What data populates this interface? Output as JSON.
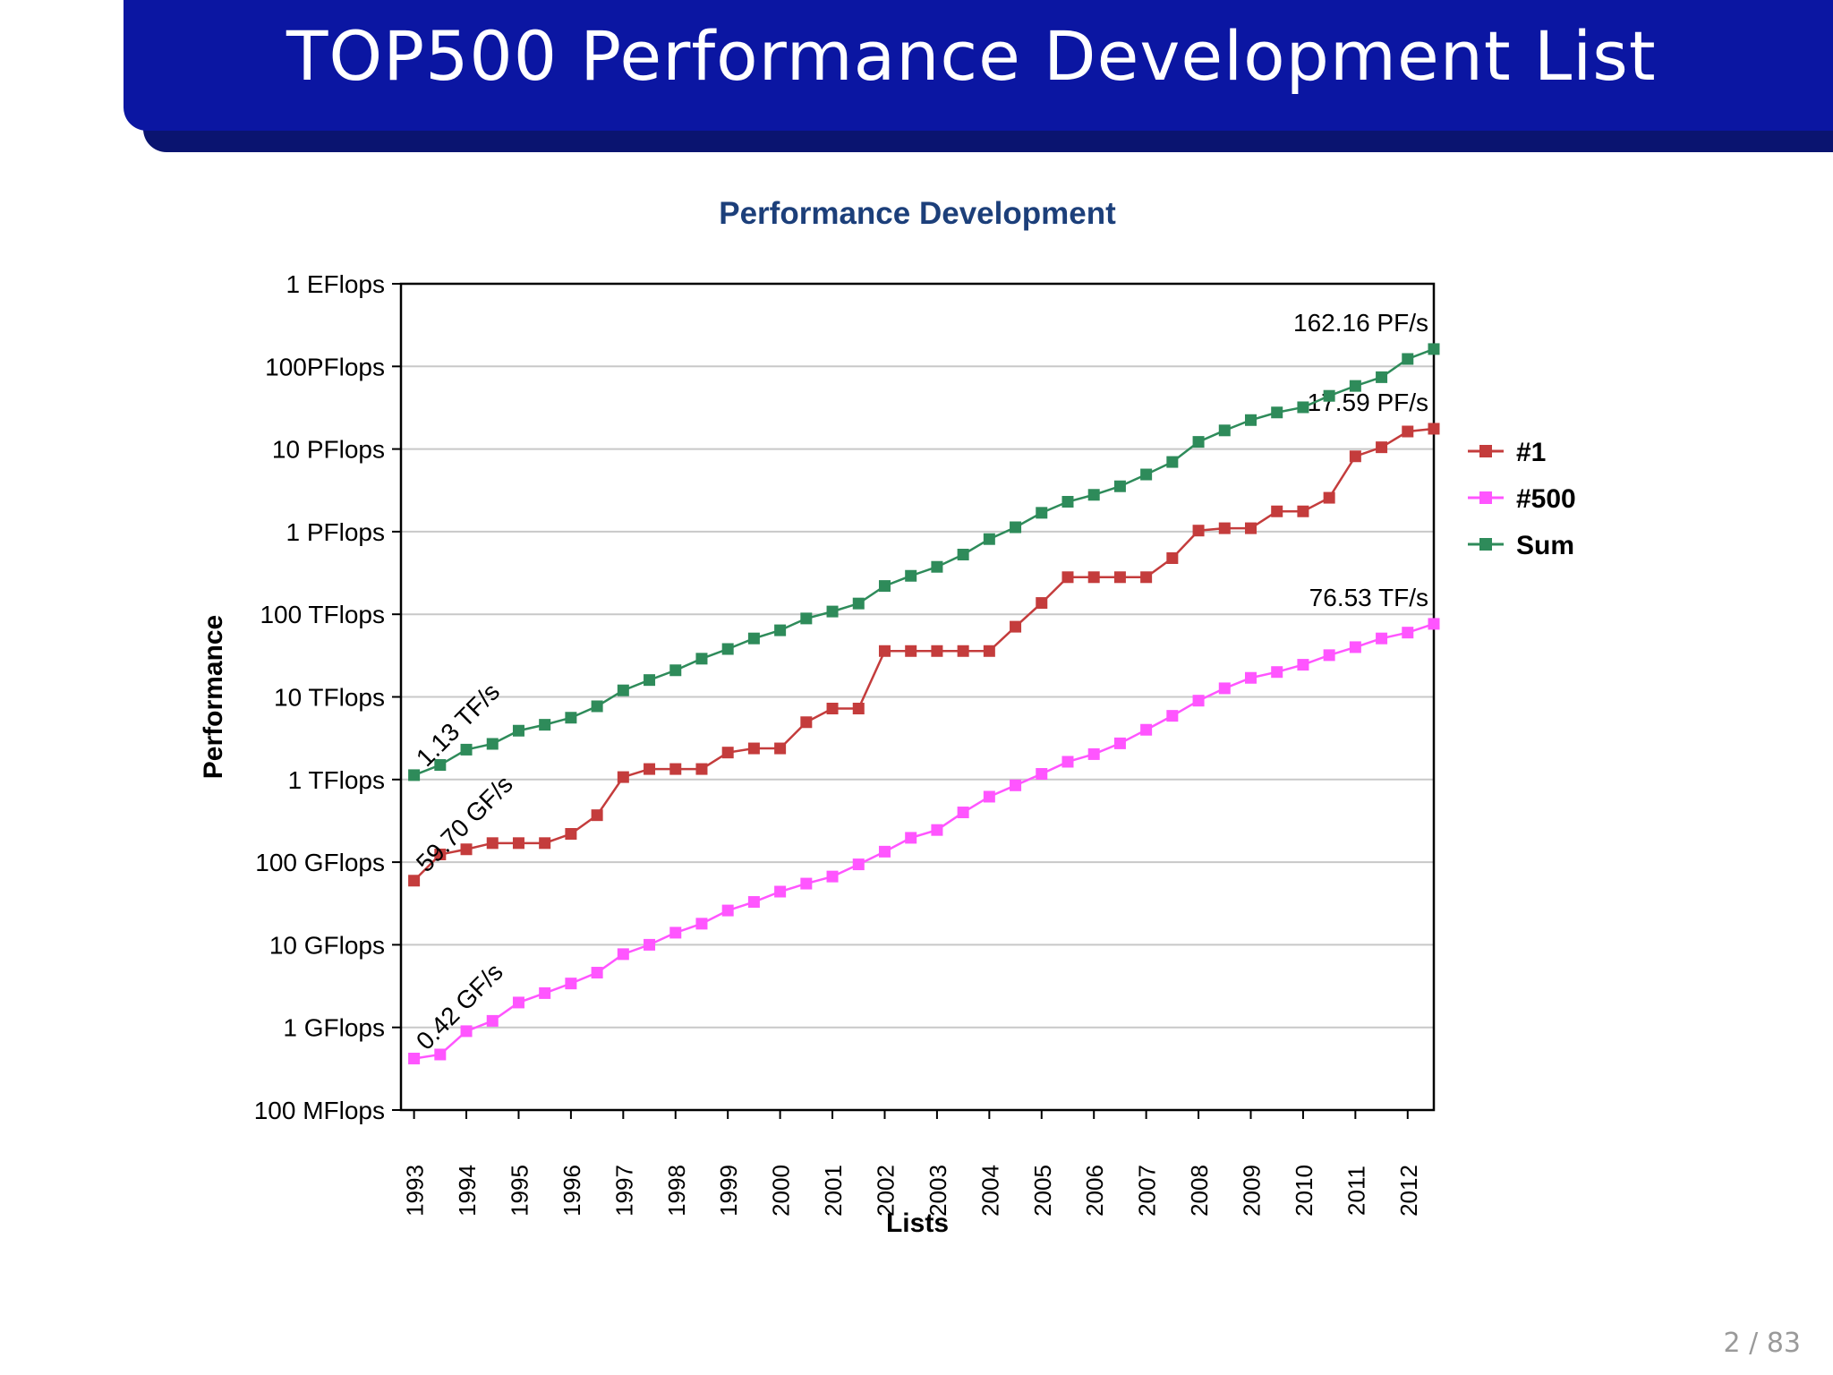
{
  "slide": {
    "title": "TOP500 Performance Development List",
    "page_number": "2 / 83"
  },
  "colors": {
    "title_bar": "#0b16a2",
    "title_shadow": "#0a1470",
    "n1": "#c43c3c",
    "n500": "#ff55ff",
    "sum": "#2e8b5a"
  },
  "chart_data": {
    "type": "line",
    "title": "Performance Development",
    "xlabel": "Lists",
    "ylabel": "Performance",
    "yscale": "log",
    "y_unit": "Flops",
    "ylim": [
      100000000.0,
      1e+18
    ],
    "yticks": [
      {
        "value": 1e+18,
        "label": "1 EFlops"
      },
      {
        "value": 1e+17,
        "label": "100PFlops"
      },
      {
        "value": 1e+16,
        "label": "10 PFlops"
      },
      {
        "value": 1000000000000000.0,
        "label": "1 PFlops"
      },
      {
        "value": 100000000000000.0,
        "label": "100 TFlops"
      },
      {
        "value": 10000000000000.0,
        "label": "10 TFlops"
      },
      {
        "value": 1000000000000.0,
        "label": "1 TFlops"
      },
      {
        "value": 100000000000.0,
        "label": "100 GFlops"
      },
      {
        "value": 10000000000.0,
        "label": "10 GFlops"
      },
      {
        "value": 1000000000.0,
        "label": "1 GFlops"
      },
      {
        "value": 100000000.0,
        "label": "100 MFlops"
      }
    ],
    "xlim": [
      1993,
      2012.5
    ],
    "xticks": [
      "1993",
      "1994",
      "1995",
      "1996",
      "1997",
      "1998",
      "1999",
      "2000",
      "2001",
      "2002",
      "2003",
      "2004",
      "2005",
      "2006",
      "2007",
      "2008",
      "2009",
      "2010",
      "2011",
      "2012"
    ],
    "x": [
      1993,
      1993.5,
      1994,
      1994.5,
      1995,
      1995.5,
      1996,
      1996.5,
      1997,
      1997.5,
      1998,
      1998.5,
      1999,
      1999.5,
      2000,
      2000.5,
      2001,
      2001.5,
      2002,
      2002.5,
      2003,
      2003.5,
      2004,
      2004.5,
      2005,
      2005.5,
      2006,
      2006.5,
      2007,
      2007.5,
      2008,
      2008.5,
      2009,
      2009.5,
      2010,
      2010.5,
      2011,
      2011.5,
      2012,
      2012.5
    ],
    "series": [
      {
        "name": "#1",
        "color": "#c43c3c",
        "values": [
          59700000000.0,
          124000000000.0,
          143000000000.0,
          170000000000.0,
          170000000000.0,
          170000000000.0,
          220000000000.0,
          370000000000.0,
          1070000000000.0,
          1340000000000.0,
          1340000000000.0,
          1340000000000.0,
          2120000000000.0,
          2380000000000.0,
          2380000000000.0,
          4940000000000.0,
          7230000000000.0,
          7230000000000.0,
          35900000000000.0,
          35900000000000.0,
          35900000000000.0,
          35900000000000.0,
          35900000000000.0,
          70700000000000.0,
          137000000000000.0,
          281000000000000.0,
          281000000000000.0,
          281000000000000.0,
          281000000000000.0,
          478000000000000.0,
          1030000000000000.0,
          1100000000000000.0,
          1100000000000000.0,
          1760000000000000.0,
          1760000000000000.0,
          2570000000000000.0,
          8160000000000000.0,
          1.05e+16,
          1.63e+16,
          1.759e+16
        ],
        "end_label": "17.59 PF/s",
        "start_label": "59.70 GF/s"
      },
      {
        "name": "#500",
        "color": "#ff55ff",
        "values": [
          420000000.0,
          470000000.0,
          900000000.0,
          1200000000.0,
          2000000000.0,
          2600000000.0,
          3400000000.0,
          4600000000.0,
          7700000000.0,
          10000000000.0,
          14000000000.0,
          18000000000.0,
          26000000000.0,
          33000000000.0,
          44000000000.0,
          55000000000.0,
          67000000000.0,
          94000000000.0,
          134000000000.0,
          197000000000.0,
          245000000000.0,
          400000000000.0,
          620000000000.0,
          850000000000.0,
          1170000000000.0,
          1640000000000.0,
          2030000000000.0,
          2740000000000.0,
          4000000000000.0,
          5900000000000.0,
          9000000000000.0,
          12700000000000.0,
          17000000000000.0,
          20000000000000.0,
          24500000000000.0,
          32000000000000.0,
          40000000000000.0,
          51000000000000.0,
          60000000000000.0,
          76530000000000.0
        ],
        "end_label": "76.53 TF/s",
        "start_label": "0.42 GF/s"
      },
      {
        "name": "Sum",
        "color": "#2e8b5a",
        "values": [
          1130000000000.0,
          1500000000000.0,
          2300000000000.0,
          2700000000000.0,
          3900000000000.0,
          4600000000000.0,
          5600000000000.0,
          7700000000000.0,
          12000000000000.0,
          16000000000000.0,
          21000000000000.0,
          29000000000000.0,
          38000000000000.0,
          51000000000000.0,
          64000000000000.0,
          89000000000000.0,
          108000000000000.0,
          135000000000000.0,
          220000000000000.0,
          292000000000000.0,
          375000000000000.0,
          528000000000000.0,
          813000000000000.0,
          1130000000000000.0,
          1690000000000000.0,
          2300000000000000.0,
          2790000000000000.0,
          3540000000000000.0,
          4920000000000000.0,
          6970000000000000.0,
          1.22e+16,
          1.68e+16,
          2.24e+16,
          2.77e+16,
          3.2e+16,
          4.4e+16,
          5.8e+16,
          7.4e+16,
          1.23e+17,
          1.6216e+17
        ],
        "end_label": "162.16 PF/s",
        "start_label": "1.13 TF/s"
      }
    ],
    "grid": true,
    "legend": "right"
  }
}
